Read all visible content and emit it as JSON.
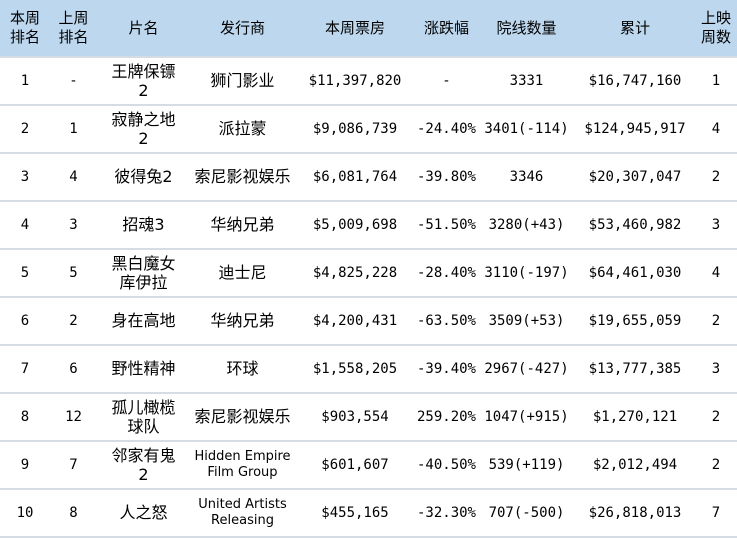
{
  "table": {
    "columns": [
      {
        "key": "rank_this_week",
        "label": "本周排名"
      },
      {
        "key": "rank_last_week",
        "label": "上周排名"
      },
      {
        "key": "film_title",
        "label": "片名"
      },
      {
        "key": "distributor",
        "label": "发行商"
      },
      {
        "key": "gross_this_week",
        "label": "本周票房"
      },
      {
        "key": "change_pct",
        "label": "涨跌幅"
      },
      {
        "key": "theater_count",
        "label": "院线数量"
      },
      {
        "key": "cumulative_gross",
        "label": "累计"
      },
      {
        "key": "weeks_released",
        "label": "上映周数"
      }
    ],
    "rows": [
      [
        "1",
        "-",
        "王牌保镖2",
        "狮门影业",
        "$11,397,820",
        "-",
        "3331",
        "$16,747,160",
        "1"
      ],
      [
        "2",
        "1",
        "寂静之地2",
        "派拉蒙",
        "$9,086,739",
        "-24.40%",
        "3401(-114)",
        "$124,945,917",
        "4"
      ],
      [
        "3",
        "4",
        "彼得兔2",
        "索尼影视娱乐",
        "$6,081,764",
        "-39.80%",
        "3346",
        "$20,307,047",
        "2"
      ],
      [
        "4",
        "3",
        "招魂3",
        "华纳兄弟",
        "$5,009,698",
        "-51.50%",
        "3280(+43)",
        "$53,460,982",
        "3"
      ],
      [
        "5",
        "5",
        "黑白魔女库伊拉",
        "迪士尼",
        "$4,825,228",
        "-28.40%",
        "3110(-197)",
        "$64,461,030",
        "4"
      ],
      [
        "6",
        "2",
        "身在高地",
        "华纳兄弟",
        "$4,200,431",
        "-63.50%",
        "3509(+53)",
        "$19,655,059",
        "2"
      ],
      [
        "7",
        "6",
        "野性精神",
        "环球",
        "$1,558,205",
        "-39.40%",
        "2967(-427)",
        "$13,777,385",
        "3"
      ],
      [
        "8",
        "12",
        "孤儿橄榄球队",
        "索尼影视娱乐",
        "$903,554",
        "259.20%",
        "1047(+915)",
        "$1,270,121",
        "2"
      ],
      [
        "9",
        "7",
        "邻家有鬼2",
        "Hidden Empire Film Group",
        "$601,607",
        "-40.50%",
        "539(+119)",
        "$2,012,494",
        "2"
      ],
      [
        "10",
        "8",
        "人之怒",
        "United Artists Releasing",
        "$455,165",
        "-32.30%",
        "707(-500)",
        "$26,818,013",
        "7"
      ]
    ]
  },
  "colors": {
    "header_bg": "#bdd7ee",
    "row_divider": "#d6dce4",
    "row_bg": "#ffffff",
    "text": "#000000"
  }
}
